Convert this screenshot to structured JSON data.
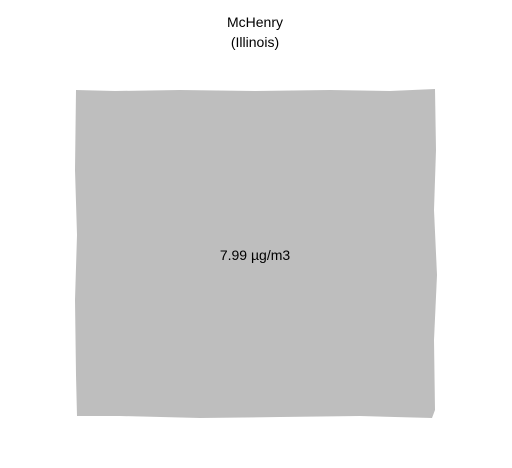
{
  "map": {
    "county": "McHenry",
    "state_label": "(Illinois)",
    "value_label": "7.99 µg/m3",
    "fill_color": "#bebebe",
    "background_color": "#ffffff"
  }
}
